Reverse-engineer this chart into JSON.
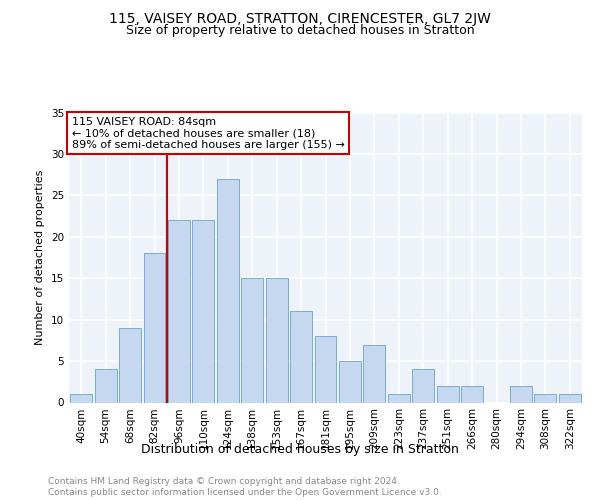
{
  "title": "115, VAISEY ROAD, STRATTON, CIRENCESTER, GL7 2JW",
  "subtitle": "Size of property relative to detached houses in Stratton",
  "xlabel": "Distribution of detached houses by size in Stratton",
  "ylabel": "Number of detached properties",
  "categories": [
    "40sqm",
    "54sqm",
    "68sqm",
    "82sqm",
    "96sqm",
    "110sqm",
    "124sqm",
    "138sqm",
    "153sqm",
    "167sqm",
    "181sqm",
    "195sqm",
    "209sqm",
    "223sqm",
    "237sqm",
    "251sqm",
    "266sqm",
    "280sqm",
    "294sqm",
    "308sqm",
    "322sqm"
  ],
  "values": [
    1,
    4,
    9,
    18,
    22,
    22,
    27,
    15,
    15,
    11,
    8,
    5,
    7,
    1,
    4,
    2,
    2,
    0,
    2,
    1,
    1
  ],
  "bar_color": "#c5d8f0",
  "bar_edge_color": "#7aadd4",
  "vline_x_idx": 3,
  "vline_color": "#cc0000",
  "annotation_line1": "115 VAISEY ROAD: 84sqm",
  "annotation_line2": "← 10% of detached houses are smaller (18)",
  "annotation_line3": "89% of semi-detached houses are larger (155) →",
  "annotation_box_color": "#cc0000",
  "ylim": [
    0,
    35
  ],
  "yticks": [
    0,
    5,
    10,
    15,
    20,
    25,
    30,
    35
  ],
  "bg_color": "#eef2f9",
  "grid_color": "#ffffff",
  "footer_text": "Contains HM Land Registry data © Crown copyright and database right 2024.\nContains public sector information licensed under the Open Government Licence v3.0.",
  "title_fontsize": 10,
  "subtitle_fontsize": 9,
  "xlabel_fontsize": 9,
  "ylabel_fontsize": 8,
  "tick_fontsize": 7.5,
  "annotation_fontsize": 8,
  "footer_fontsize": 6.5
}
